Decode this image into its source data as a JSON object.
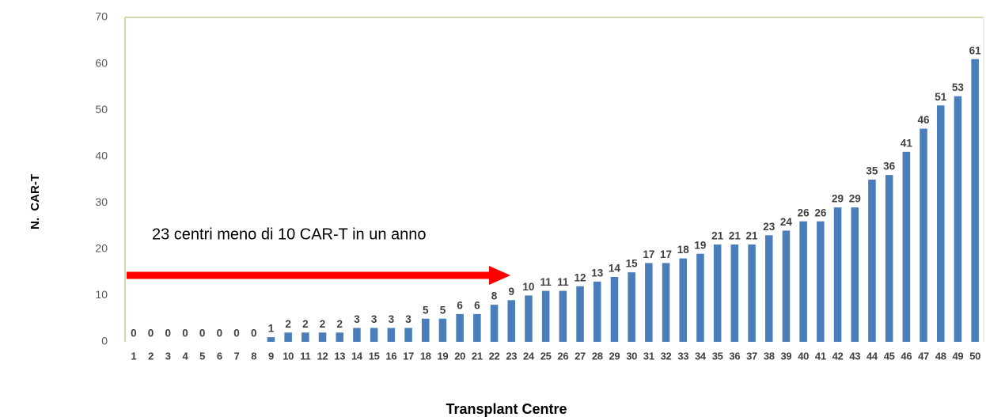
{
  "chart_data": {
    "type": "bar",
    "x_label": "Transplant Centre",
    "y_label": "N.  CAR-T",
    "annotation": "23 centri meno di 10 CAR-T in un anno",
    "categories": [
      "1",
      "2",
      "3",
      "4",
      "5",
      "6",
      "7",
      "8",
      "9",
      "10",
      "11",
      "12",
      "13",
      "14",
      "15",
      "16",
      "17",
      "18",
      "19",
      "20",
      "21",
      "22",
      "23",
      "24",
      "25",
      "26",
      "27",
      "28",
      "29",
      "30",
      "31",
      "32",
      "33",
      "34",
      "35",
      "36",
      "37",
      "38",
      "39",
      "40",
      "41",
      "42",
      "43",
      "44",
      "45",
      "46",
      "47",
      "48",
      "49",
      "50"
    ],
    "values": [
      0,
      0,
      0,
      0,
      0,
      0,
      0,
      0,
      1,
      2,
      2,
      2,
      2,
      3,
      3,
      3,
      3,
      5,
      5,
      6,
      6,
      8,
      9,
      10,
      11,
      11,
      12,
      13,
      14,
      15,
      17,
      17,
      18,
      19,
      21,
      21,
      21,
      23,
      24,
      26,
      26,
      29,
      29,
      35,
      36,
      41,
      46,
      51,
      53,
      61
    ],
    "color": "#4a7ebb",
    "ylim": [
      0,
      70
    ],
    "yticks": [
      0,
      10,
      20,
      30,
      40,
      50,
      60,
      70
    ],
    "grid": false
  }
}
